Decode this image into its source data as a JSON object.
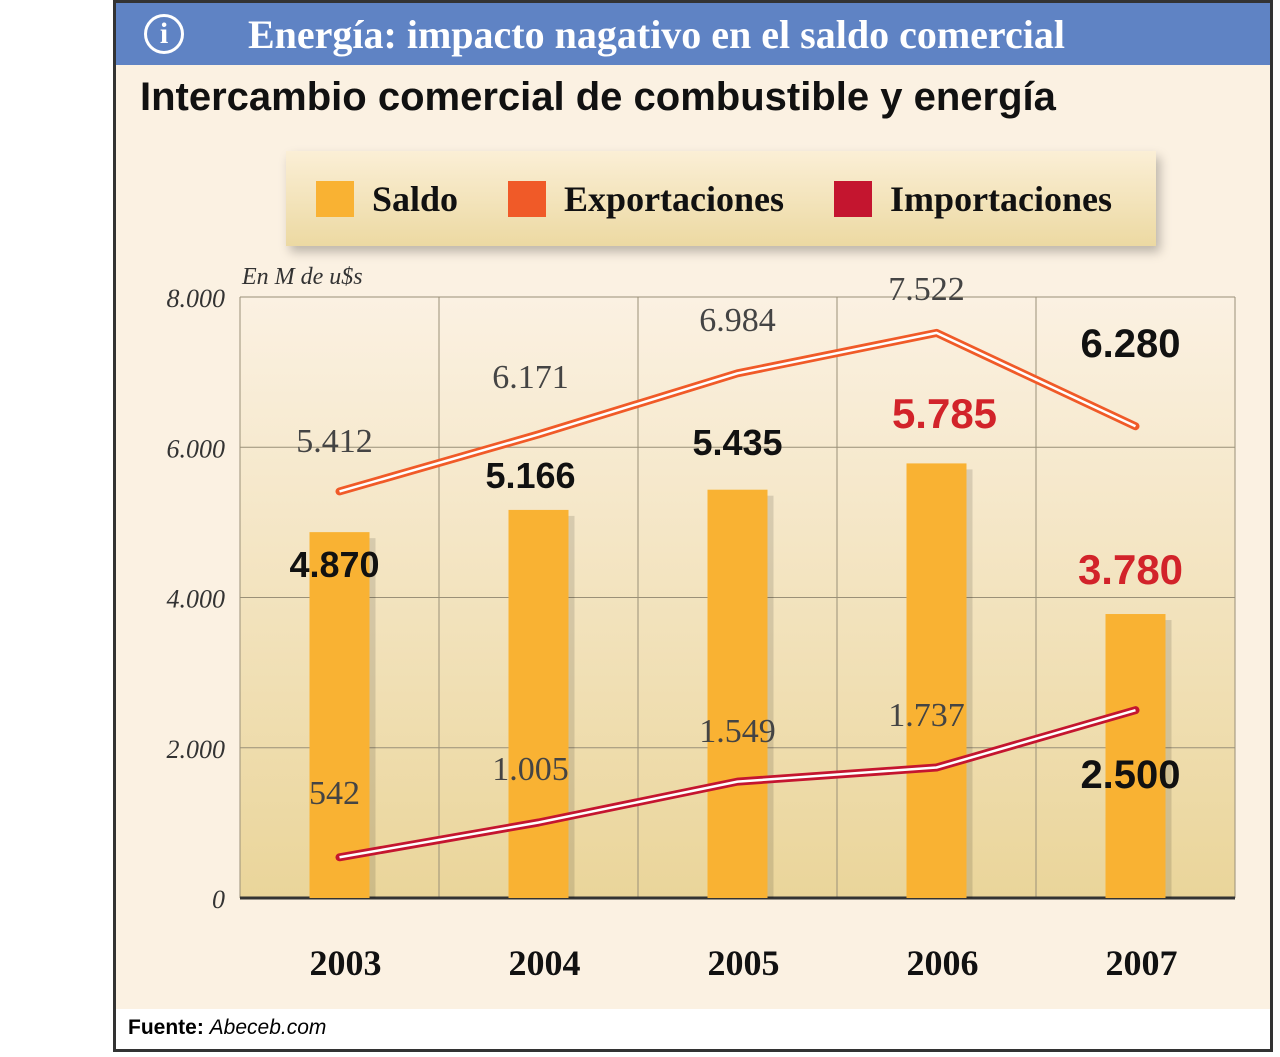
{
  "banner": {
    "title": "Energía: impacto nagativo en el saldo comercial",
    "icon": "info-icon"
  },
  "footer": {
    "label": "Fuente:",
    "source": "Abeceb.com"
  },
  "chart_data": {
    "type": "bar+line",
    "title": "Intercambio comercial de combustible y energía",
    "ylabel": "En M de u$s",
    "ylim": [
      0,
      8000
    ],
    "yticks": [
      "0",
      "2.000",
      "4.000",
      "6.000",
      "8.000"
    ],
    "yticks_values": [
      0,
      2000,
      4000,
      6000,
      8000
    ],
    "grid": true,
    "legend_position": "top",
    "categories": [
      "2003",
      "2004",
      "2005",
      "2006",
      "2007"
    ],
    "series": [
      {
        "name": "Saldo",
        "kind": "bar",
        "color": "#f9b233",
        "values": [
          4870,
          5166,
          5435,
          5785,
          3780
        ],
        "labels": [
          "4.870",
          "5.166",
          "5.435",
          "5.785",
          "3.780"
        ]
      },
      {
        "name": "Exportaciones",
        "kind": "line",
        "color": "#f05a28",
        "values": [
          5412,
          6171,
          6984,
          7522,
          6280
        ],
        "labels": [
          "5.412",
          "6.171",
          "6.984",
          "7.522",
          "6.280"
        ]
      },
      {
        "name": "Importaciones",
        "kind": "line",
        "color": "#c4152f",
        "values": [
          542,
          1005,
          1549,
          1737,
          2500
        ],
        "labels": [
          "542",
          "1.005",
          "1.549",
          "1.737",
          "2.500"
        ]
      }
    ],
    "highlight_color": "#d2232a"
  }
}
